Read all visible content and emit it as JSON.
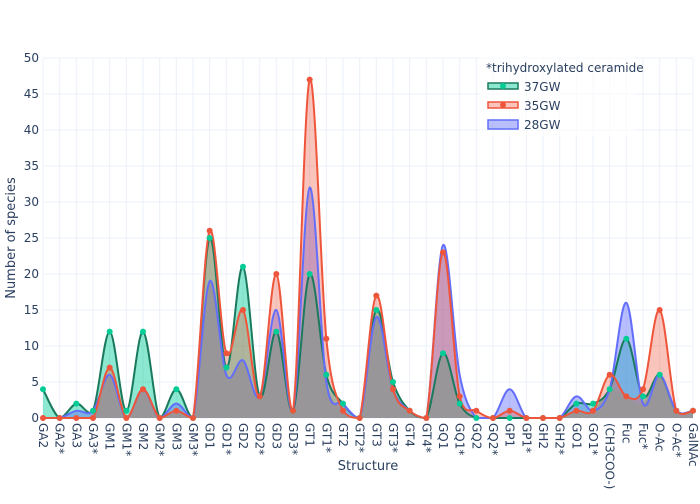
{
  "chart_data": {
    "type": "area",
    "xlabel": "Structure",
    "ylabel": "Number of species",
    "ylim": [
      0,
      50
    ],
    "yticks": [
      0,
      5,
      10,
      15,
      20,
      25,
      30,
      35,
      40,
      45,
      50
    ],
    "grid": true,
    "legend_title": "*trihydroxylated ceramide",
    "legend_position": "top-right",
    "categories": [
      "GA2",
      "GA2*",
      "GA3",
      "GA3*",
      "GM1",
      "GM1*",
      "GM2",
      "GM2*",
      "GM3",
      "GM3*",
      "GD1",
      "GD1*",
      "GD2",
      "GD2*",
      "GD3",
      "GD3*",
      "GT1",
      "GT1*",
      "GT2",
      "GT2*",
      "GT3",
      "GT3*",
      "GT4",
      "GT4*",
      "GQ1",
      "GQ1*",
      "GQ2",
      "GQ2*",
      "GP1",
      "GP1*",
      "GH2",
      "GH2*",
      "GO1",
      "GO1*",
      "(CH3COO-)",
      "Fuc",
      "Fuc*",
      "O-Ac",
      "O-Ac*",
      "GalNAc"
    ],
    "series": [
      {
        "name": "37GW",
        "line_color": "#1a7a5e",
        "fill_color": "rgba(0,204,150,0.45)",
        "marker_color": "#00cc96",
        "markers": true,
        "values": [
          4,
          0,
          2,
          1,
          12,
          1,
          12,
          0,
          4,
          0,
          25,
          7,
          21,
          3,
          12,
          1,
          20,
          6,
          2,
          0,
          15,
          5,
          1,
          0,
          9,
          2,
          0,
          0,
          0,
          0,
          0,
          0,
          2,
          2,
          4,
          11,
          3,
          6,
          1,
          1
        ]
      },
      {
        "name": "35GW",
        "line_color": "#ef553b",
        "fill_color": "rgba(239,85,59,0.35)",
        "marker_color": "#ef553b",
        "markers": true,
        "values": [
          0,
          0,
          0,
          0,
          7,
          0,
          4,
          0,
          1,
          0,
          26,
          9,
          15,
          3,
          20,
          1,
          47,
          11,
          1,
          0,
          17,
          4,
          1,
          0,
          23,
          3,
          1,
          0,
          1,
          0,
          0,
          0,
          1,
          1,
          6,
          3,
          4,
          15,
          1,
          1
        ]
      },
      {
        "name": "28GW",
        "line_color": "#636efa",
        "fill_color": "rgba(99,110,250,0.45)",
        "marker_color": "#636efa",
        "markers": false,
        "values": [
          0,
          0,
          1,
          1,
          6,
          0,
          4,
          0,
          2,
          0,
          19,
          6,
          8,
          3,
          15,
          1,
          32,
          5,
          2,
          0,
          14,
          4,
          1,
          0,
          24,
          6,
          0,
          0,
          4,
          0,
          0,
          0,
          3,
          1,
          4,
          16,
          2,
          6,
          1,
          1
        ]
      }
    ],
    "overlap_color": "rgba(150,150,150,0.85)"
  }
}
